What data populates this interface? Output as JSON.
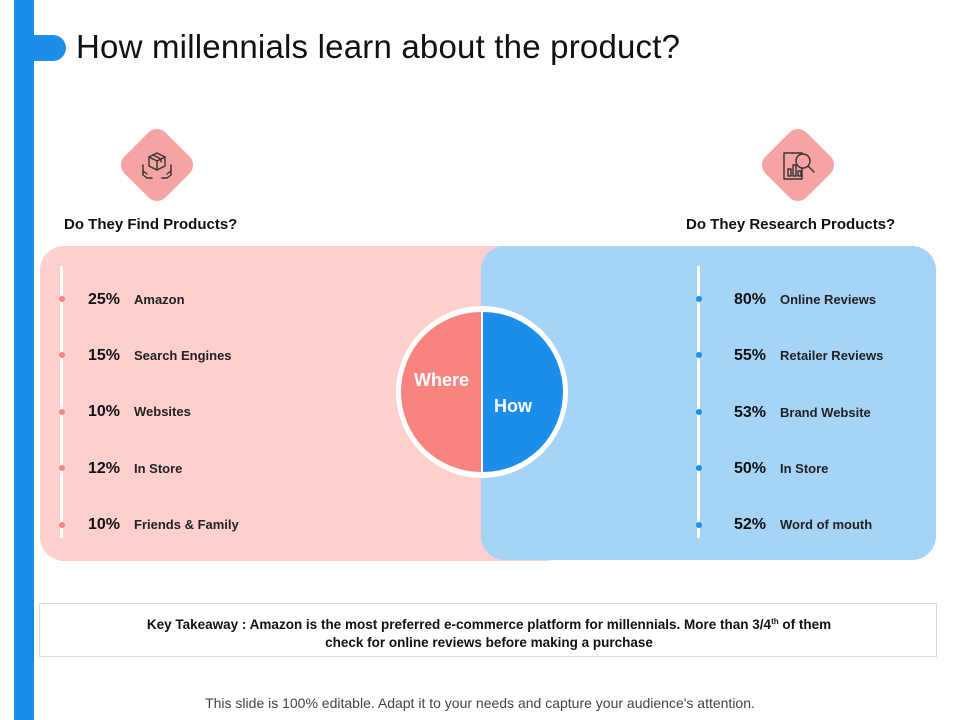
{
  "title": "How millennials learn about the product?",
  "left": {
    "heading": "Do They Find Products?",
    "icon": "box-hands-icon",
    "items": [
      {
        "pct": "25%",
        "label": "Amazon"
      },
      {
        "pct": "15%",
        "label": "Search Engines"
      },
      {
        "pct": "10%",
        "label": "Websites"
      },
      {
        "pct": "12%",
        "label": "In Store"
      },
      {
        "pct": "10%",
        "label": "Friends & Family"
      }
    ]
  },
  "right": {
    "heading": "Do They Research Products?",
    "icon": "magnifier-chart-icon",
    "items": [
      {
        "pct": "80%",
        "label": "Online Reviews"
      },
      {
        "pct": "55%",
        "label": "Retailer Reviews"
      },
      {
        "pct": "53%",
        "label": "Brand Website"
      },
      {
        "pct": "50%",
        "label": "In Store"
      },
      {
        "pct": "52%",
        "label": "Word of mouth"
      }
    ]
  },
  "center": {
    "where": "Where",
    "how": "How"
  },
  "takeaway": {
    "line1_a": "Key Takeaway : Amazon is the most preferred e-commerce platform for millennials. More than 3/4",
    "line1_sup": "th",
    "line1_b": " of them",
    "line2": "check for online reviews before making a purchase"
  },
  "footer": "This slide is 100% editable. Adapt it to your needs and capture your audience's attention.",
  "colors": {
    "accent_blue": "#1c8de9",
    "pink_panel": "#fdd0ce",
    "blue_panel": "#a6d4f6",
    "where_red": "#f7847f",
    "icon_tile": "#f6a3a3"
  }
}
